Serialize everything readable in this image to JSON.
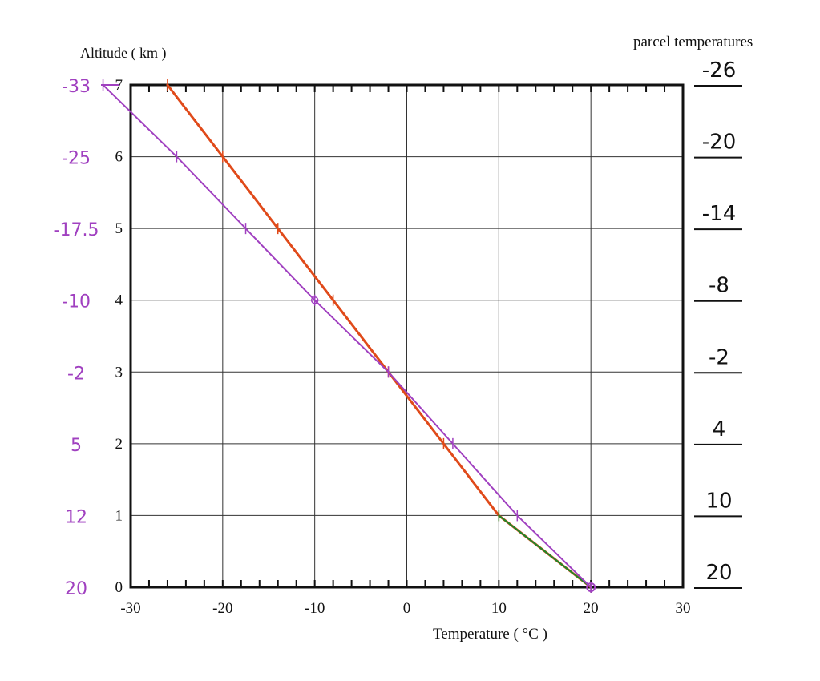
{
  "chart_data": {
    "type": "line",
    "xlabel": "Temperature ( °C )",
    "ylabel": "Altitude ( km )",
    "right_header": "parcel temperatures",
    "xlim": [
      -30,
      30
    ],
    "ylim": [
      0,
      7
    ],
    "x_ticks": [
      "-30",
      "-20",
      "-10",
      "0",
      "10",
      "20",
      "30"
    ],
    "y_ticks": [
      "0",
      "1",
      "2",
      "3",
      "4",
      "5",
      "6",
      "7"
    ],
    "grid": true,
    "series": [
      {
        "color": "#e04a1a",
        "points": [
          [
            20,
            0
          ],
          [
            10,
            1
          ],
          [
            4,
            2
          ],
          [
            -2,
            3
          ],
          [
            -8,
            4
          ],
          [
            -14,
            5
          ],
          [
            -20,
            6
          ],
          [
            -26,
            7
          ]
        ]
      },
      {
        "color": "#1a8a2a",
        "points": [
          [
            20,
            0
          ],
          [
            10,
            1
          ]
        ]
      },
      {
        "color": "#a040c0",
        "points": [
          [
            20,
            0
          ],
          [
            12,
            1
          ],
          [
            5,
            2
          ],
          [
            -2,
            3
          ],
          [
            -10,
            4
          ],
          [
            -17.5,
            5
          ],
          [
            -25,
            6
          ],
          [
            -33,
            7
          ]
        ]
      }
    ],
    "left_annotations": {
      "color": "#a040c0",
      "labels": [
        "20",
        "12",
        "5",
        "-2",
        "-10",
        "-17.5",
        "-25",
        "-33"
      ]
    },
    "right_annotations": {
      "color": "#111111",
      "labels": [
        "20",
        "10",
        "4",
        "-2",
        "-8",
        "-14",
        "-20",
        "-26"
      ]
    }
  }
}
